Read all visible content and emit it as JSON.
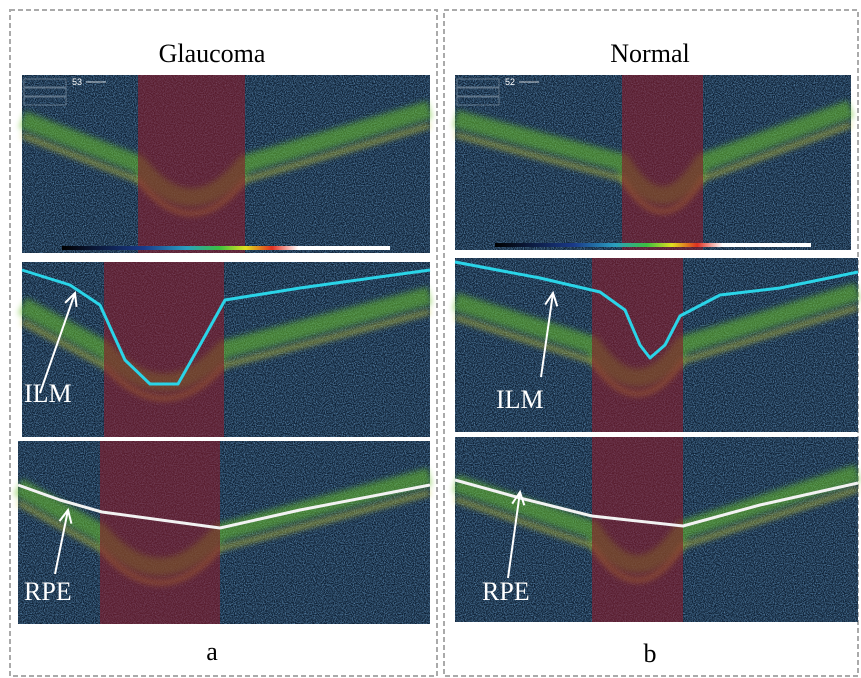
{
  "panels": [
    {
      "title": "Glaucoma",
      "caption": "a",
      "scan_number": "53",
      "ilm_label": "ILM",
      "rpe_label": "RPE"
    },
    {
      "title": "Normal",
      "caption": "b",
      "scan_number": "52",
      "ilm_label": "ILM",
      "rpe_label": "RPE"
    }
  ]
}
